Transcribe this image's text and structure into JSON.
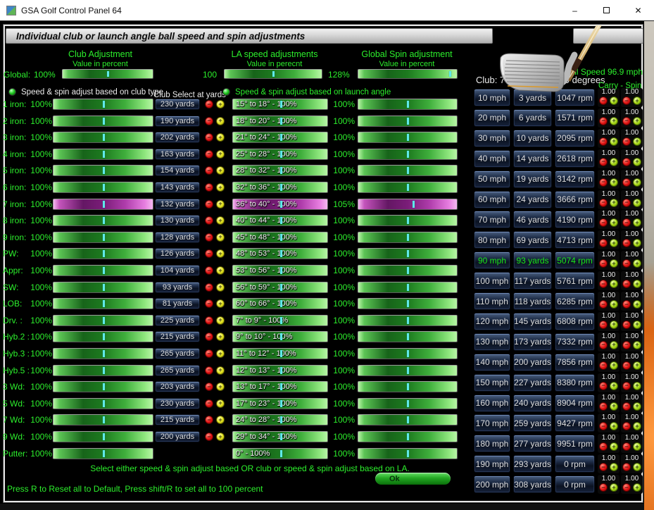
{
  "window": {
    "title": "GSA Golf Control Panel 64",
    "minimize": "–",
    "close": "✕"
  },
  "header": {
    "title": "Individual club or launch angle ball speed and spin adjustments"
  },
  "columns": {
    "club": {
      "title": "Club Adjustment",
      "subtitle": "Value in percent",
      "global_label": "Global:",
      "global_value": "100%"
    },
    "la": {
      "title": "LA speed adjustments",
      "subtitle": "Value in perecnt",
      "global_value": "100"
    },
    "spin": {
      "title": "Global Spin adjustment",
      "subtitle": "Value in percent",
      "global_value": "128%"
    }
  },
  "radios": {
    "club_type_label": "Speed & spin adjust based on club type",
    "launch_angle_label": "Speed & spin adjust based on launch angle",
    "club_select_header": "Club Select at yards"
  },
  "club_rows": [
    {
      "label": "1 iron:",
      "value": "100%",
      "yards": "230 yards",
      "selected": false
    },
    {
      "label": "2 iron:",
      "value": "100%",
      "yards": "190 yards",
      "selected": false
    },
    {
      "label": "3 iron:",
      "value": "100%",
      "yards": "202 yards",
      "selected": false
    },
    {
      "label": "4 iron:",
      "value": "100%",
      "yards": "163 yards",
      "selected": false
    },
    {
      "label": "5 iron:",
      "value": "100%",
      "yards": "154 yards",
      "selected": false
    },
    {
      "label": "6 iron:",
      "value": "100%",
      "yards": "143 yards",
      "selected": false
    },
    {
      "label": "7 iron:",
      "value": "100%",
      "yards": "132 yards",
      "selected": true
    },
    {
      "label": "8 iron:",
      "value": "100%",
      "yards": "130 yards",
      "selected": false
    },
    {
      "label": "9 iron:",
      "value": "100%",
      "yards": "128 yards",
      "selected": false
    },
    {
      "label": "PW:",
      "value": "100%",
      "yards": "126 yards",
      "selected": false
    },
    {
      "label": "Appr:",
      "value": "100%",
      "yards": "104 yards",
      "selected": false
    },
    {
      "label": "SW:",
      "value": "100%",
      "yards": "93 yards",
      "selected": false
    },
    {
      "label": "LOB:",
      "value": "100%",
      "yards": "81 yards",
      "selected": false
    },
    {
      "label": "Drv. :",
      "value": "100%",
      "yards": "225 yards",
      "selected": false
    },
    {
      "label": "Hyb.2 :",
      "value": "100%",
      "yards": "215 yards",
      "selected": false
    },
    {
      "label": "Hyb.3 :",
      "value": "100%",
      "yards": "265 yards",
      "selected": false
    },
    {
      "label": "Hyb.5 :",
      "value": "100%",
      "yards": "265 yards",
      "selected": false
    },
    {
      "label": "3 Wd:",
      "value": "100%",
      "yards": "203 yards",
      "selected": false
    },
    {
      "label": "5 Wd:",
      "value": "100%",
      "yards": "230 yards",
      "selected": false
    },
    {
      "label": "7 Wd:",
      "value": "100%",
      "yards": "215 yards",
      "selected": false
    },
    {
      "label": "9 Wd:",
      "value": "100%",
      "yards": "200 yards",
      "selected": false
    },
    {
      "label": "Putter:",
      "value": "100%",
      "yards": null,
      "selected": false
    }
  ],
  "la_rows": [
    {
      "text": "15° to 18° - 100%",
      "selected": false
    },
    {
      "text": "18° to 20° - 100%",
      "selected": false
    },
    {
      "text": "21° to 24° - 100%",
      "selected": false
    },
    {
      "text": "25° to 28° - 100%",
      "selected": false
    },
    {
      "text": "28° to 32° - 100%",
      "selected": false
    },
    {
      "text": "32° to 36° - 100%",
      "selected": false
    },
    {
      "text": "36° to 40° - 100%",
      "selected": true
    },
    {
      "text": "40° to 44° - 100%",
      "selected": false
    },
    {
      "text": "45° to 48° - 100%",
      "selected": false
    },
    {
      "text": "48° to 53° - 100%",
      "selected": false
    },
    {
      "text": "53° to 56° - 100%",
      "selected": false
    },
    {
      "text": "56° to 59° - 100%",
      "selected": false
    },
    {
      "text": "60° to 66° - 100%",
      "selected": false
    },
    {
      "text": "7° to 9° - 100%",
      "selected": false
    },
    {
      "text": "9° to 10° - 100%",
      "selected": false
    },
    {
      "text": "11° to 12° - 100%",
      "selected": false
    },
    {
      "text": "12° to 13° - 100%",
      "selected": false
    },
    {
      "text": "13° to 17° - 100%",
      "selected": false
    },
    {
      "text": "17° to 23° - 100%",
      "selected": false
    },
    {
      "text": "24° to 28° - 100%",
      "selected": false
    },
    {
      "text": "29° to 34° - 100%",
      "selected": false
    },
    {
      "text": "0° - 100%",
      "selected": false
    }
  ],
  "spin_rows": [
    {
      "value": "100%",
      "selected": false
    },
    {
      "value": "100%",
      "selected": false
    },
    {
      "value": "100%",
      "selected": false
    },
    {
      "value": "100%",
      "selected": false
    },
    {
      "value": "100%",
      "selected": false
    },
    {
      "value": "100%",
      "selected": false
    },
    {
      "value": "105%",
      "selected": true
    },
    {
      "value": "100%",
      "selected": false
    },
    {
      "value": "100%",
      "selected": false
    },
    {
      "value": "100%",
      "selected": false
    },
    {
      "value": "100%",
      "selected": false
    },
    {
      "value": "100%",
      "selected": false
    },
    {
      "value": "100%",
      "selected": false
    },
    {
      "value": "100%",
      "selected": false
    },
    {
      "value": "100%",
      "selected": false
    },
    {
      "value": "100%",
      "selected": false
    },
    {
      "value": "100%",
      "selected": false
    },
    {
      "value": "100%",
      "selected": false
    },
    {
      "value": "100%",
      "selected": false
    },
    {
      "value": "100%",
      "selected": false
    },
    {
      "value": "100%",
      "selected": false
    },
    {
      "value": "100%",
      "selected": false
    }
  ],
  "right_panel": {
    "ball_speed": "Ball Speed 96.9 mph",
    "club_info": "Club: 7 Iron - Loft: 33.0 degrees",
    "carry_spin_header": "Carry - Spin",
    "rows": [
      {
        "mph": "10 mph",
        "yards": "3 yards",
        "rpm": "1047 rpm",
        "carry": "1.00",
        "spin": "1.00",
        "highlight": false
      },
      {
        "mph": "20 mph",
        "yards": "6 yards",
        "rpm": "1571 rpm",
        "carry": "1.00",
        "spin": "1.00",
        "highlight": false
      },
      {
        "mph": "30 mph",
        "yards": "10 yards",
        "rpm": "2095 rpm",
        "carry": "1.00",
        "spin": "1.00",
        "highlight": false
      },
      {
        "mph": "40 mph",
        "yards": "14 yards",
        "rpm": "2618 rpm",
        "carry": "1.00",
        "spin": "1.00",
        "highlight": false
      },
      {
        "mph": "50 mph",
        "yards": "19 yards",
        "rpm": "3142 rpm",
        "carry": "1.00",
        "spin": "1.00",
        "highlight": false
      },
      {
        "mph": "60 mph",
        "yards": "24 yards",
        "rpm": "3666 rpm",
        "carry": "1.00",
        "spin": "1.00",
        "highlight": false
      },
      {
        "mph": "70 mph",
        "yards": "46 yards",
        "rpm": "4190 rpm",
        "carry": "1.00",
        "spin": "1.00",
        "highlight": false
      },
      {
        "mph": "80 mph",
        "yards": "69 yards",
        "rpm": "4713 rpm",
        "carry": "1.00",
        "spin": "1.00",
        "highlight": false
      },
      {
        "mph": "90 mph",
        "yards": "93 yards",
        "rpm": "5074 rpm",
        "carry": "1.00",
        "spin": "1.00",
        "highlight": true
      },
      {
        "mph": "100 mph",
        "yards": "117 yards",
        "rpm": "5761 rpm",
        "carry": "1.00",
        "spin": "1.00",
        "highlight": false
      },
      {
        "mph": "110 mph",
        "yards": "118 yards",
        "rpm": "6285 rpm",
        "carry": "1.00",
        "spin": "1.00",
        "highlight": false
      },
      {
        "mph": "120 mph",
        "yards": "145 yards",
        "rpm": "6808 rpm",
        "carry": "1.00",
        "spin": "1.00",
        "highlight": false
      },
      {
        "mph": "130 mph",
        "yards": "173 yards",
        "rpm": "7332 rpm",
        "carry": "1.00",
        "spin": "1.00",
        "highlight": false
      },
      {
        "mph": "140 mph",
        "yards": "200 yards",
        "rpm": "7856 rpm",
        "carry": "1.00",
        "spin": "1.00",
        "highlight": false
      },
      {
        "mph": "150 mph",
        "yards": "227 yards",
        "rpm": "8380 rpm",
        "carry": "1.00",
        "spin": "1.00",
        "highlight": false
      },
      {
        "mph": "160 mph",
        "yards": "240 yards",
        "rpm": "8904 rpm",
        "carry": "1.00",
        "spin": "1.00",
        "highlight": false
      },
      {
        "mph": "170 mph",
        "yards": "259 yards",
        "rpm": "9427 rpm",
        "carry": "1.00",
        "spin": "1.00",
        "highlight": false
      },
      {
        "mph": "180 mph",
        "yards": "277 yards",
        "rpm": "9951 rpm",
        "carry": "1.00",
        "spin": "1.00",
        "highlight": false
      },
      {
        "mph": "190 mph",
        "yards": "293 yards",
        "rpm": "0 rpm",
        "carry": "1.00",
        "spin": "1.00",
        "highlight": false
      },
      {
        "mph": "200 mph",
        "yards": "308 yards",
        "rpm": "0 rpm",
        "carry": "1.00",
        "spin": "1.00",
        "highlight": false
      }
    ]
  },
  "footer": {
    "line1": "Select either speed & spin adjust based OR club or speed & spin adjust based on LA.",
    "line2": "Press R to Reset all to Default, Press shift/R to set all to 100 percent",
    "ok_label": "Ok"
  },
  "colors": {
    "accent_green": "#2cef2c",
    "selected_purple": "#b03cae",
    "slider_handle": "#5fe9e9"
  }
}
